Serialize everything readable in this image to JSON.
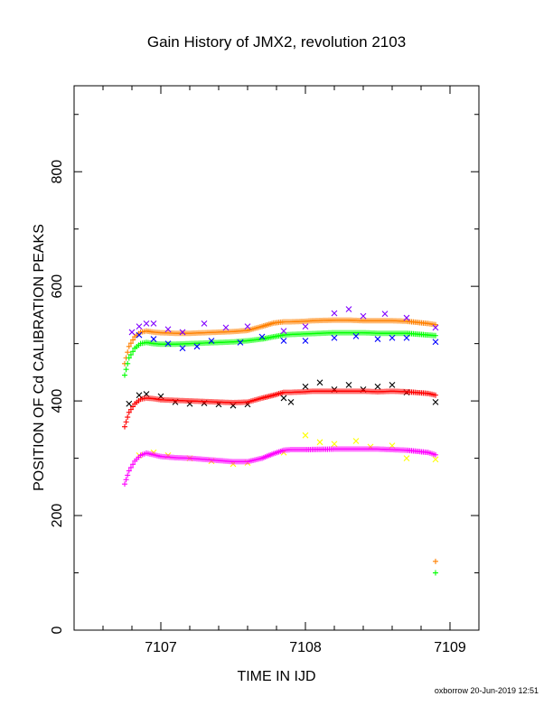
{
  "chart_data": {
    "type": "scatter",
    "title": "Gain History of JMX2, revolution 2103",
    "xlabel": "TIME IN IJD",
    "ylabel": "POSITION OF Cd CALIBRATION PEAKS",
    "xlim": [
      7106.4,
      7109.2
    ],
    "ylim": [
      0,
      950
    ],
    "x_ticks": [
      "7107",
      "7108",
      "7109"
    ],
    "y_ticks": [
      "0",
      "200",
      "400",
      "600",
      "800"
    ],
    "grid": false,
    "legend": "none",
    "credit": "oxborrow 20-Jun-2019 12:51",
    "series": [
      {
        "color": "#ff8000",
        "marker": "+",
        "points": [
          [
            6.75,
            465
          ],
          [
            6.78,
            495
          ],
          [
            6.82,
            512
          ],
          [
            6.86,
            520
          ],
          [
            6.9,
            522
          ],
          [
            6.95,
            520
          ],
          [
            7.0,
            519
          ],
          [
            7.1,
            518
          ],
          [
            7.2,
            518
          ],
          [
            7.3,
            519
          ],
          [
            7.4,
            520
          ],
          [
            7.5,
            521
          ],
          [
            7.6,
            523
          ],
          [
            7.7,
            530
          ],
          [
            7.78,
            536
          ],
          [
            7.85,
            538
          ],
          [
            7.9,
            538
          ],
          [
            8.0,
            539
          ],
          [
            8.05,
            540
          ],
          [
            8.2,
            541
          ],
          [
            8.3,
            541
          ],
          [
            8.4,
            540
          ],
          [
            8.5,
            540
          ],
          [
            8.6,
            540
          ],
          [
            8.7,
            539
          ],
          [
            8.85,
            535
          ],
          [
            8.9,
            533
          ],
          [
            8.9,
            120
          ]
        ]
      },
      {
        "color": "#00ff00",
        "marker": "+",
        "points": [
          [
            6.75,
            445
          ],
          [
            6.78,
            475
          ],
          [
            6.82,
            492
          ],
          [
            6.86,
            500
          ],
          [
            6.9,
            502
          ],
          [
            6.95,
            500
          ],
          [
            7.0,
            499
          ],
          [
            7.1,
            499
          ],
          [
            7.2,
            500
          ],
          [
            7.3,
            501
          ],
          [
            7.4,
            502
          ],
          [
            7.5,
            503
          ],
          [
            7.6,
            505
          ],
          [
            7.7,
            508
          ],
          [
            7.78,
            512
          ],
          [
            7.85,
            515
          ],
          [
            7.9,
            516
          ],
          [
            8.0,
            517
          ],
          [
            8.1,
            518
          ],
          [
            8.2,
            519
          ],
          [
            8.3,
            519
          ],
          [
            8.4,
            519
          ],
          [
            8.5,
            518
          ],
          [
            8.6,
            518
          ],
          [
            8.7,
            518
          ],
          [
            8.85,
            515
          ],
          [
            8.9,
            514
          ],
          [
            8.9,
            100
          ]
        ]
      },
      {
        "color": "#8000ff",
        "marker": "x",
        "points": [
          [
            6.8,
            520
          ],
          [
            6.85,
            530
          ],
          [
            6.9,
            535
          ],
          [
            6.95,
            535
          ],
          [
            7.05,
            525
          ],
          [
            7.15,
            520
          ],
          [
            7.3,
            535
          ],
          [
            7.45,
            528
          ],
          [
            7.6,
            530
          ],
          [
            7.85,
            522
          ],
          [
            8.0,
            530
          ],
          [
            8.2,
            553
          ],
          [
            8.3,
            560
          ],
          [
            8.4,
            548
          ],
          [
            8.55,
            552
          ],
          [
            8.7,
            545
          ],
          [
            8.9,
            528
          ]
        ]
      },
      {
        "color": "#0000ff",
        "marker": "x",
        "points": [
          [
            6.85,
            515
          ],
          [
            6.95,
            508
          ],
          [
            7.05,
            500
          ],
          [
            7.15,
            492
          ],
          [
            7.25,
            495
          ],
          [
            7.35,
            505
          ],
          [
            7.55,
            502
          ],
          [
            7.7,
            512
          ],
          [
            7.85,
            505
          ],
          [
            8.0,
            505
          ],
          [
            8.2,
            510
          ],
          [
            8.35,
            513
          ],
          [
            8.5,
            508
          ],
          [
            8.6,
            510
          ],
          [
            8.7,
            510
          ],
          [
            8.9,
            503
          ]
        ]
      },
      {
        "color": "#000000",
        "marker": "x",
        "points": [
          [
            6.78,
            395
          ],
          [
            6.85,
            410
          ],
          [
            6.9,
            412
          ],
          [
            7.0,
            408
          ],
          [
            7.1,
            398
          ],
          [
            7.2,
            395
          ],
          [
            7.3,
            396
          ],
          [
            7.4,
            394
          ],
          [
            7.5,
            392
          ],
          [
            7.6,
            394
          ],
          [
            7.85,
            405
          ],
          [
            7.9,
            398
          ],
          [
            8.0,
            425
          ],
          [
            8.1,
            432
          ],
          [
            8.2,
            420
          ],
          [
            8.3,
            428
          ],
          [
            8.4,
            420
          ],
          [
            8.5,
            425
          ],
          [
            8.6,
            428
          ],
          [
            8.7,
            415
          ],
          [
            8.9,
            398
          ]
        ]
      },
      {
        "color": "#ff0000",
        "marker": "+",
        "points": [
          [
            6.75,
            355
          ],
          [
            6.78,
            380
          ],
          [
            6.82,
            395
          ],
          [
            6.86,
            403
          ],
          [
            6.9,
            405
          ],
          [
            6.95,
            404
          ],
          [
            7.0,
            402
          ],
          [
            7.1,
            401
          ],
          [
            7.2,
            400
          ],
          [
            7.3,
            399
          ],
          [
            7.4,
            398
          ],
          [
            7.5,
            397
          ],
          [
            7.6,
            398
          ],
          [
            7.7,
            405
          ],
          [
            7.78,
            410
          ],
          [
            7.85,
            415
          ],
          [
            7.9,
            415
          ],
          [
            8.0,
            416
          ],
          [
            8.05,
            417
          ],
          [
            8.2,
            417
          ],
          [
            8.3,
            417
          ],
          [
            8.4,
            417
          ],
          [
            8.5,
            416
          ],
          [
            8.6,
            417
          ],
          [
            8.7,
            416
          ],
          [
            8.85,
            413
          ],
          [
            8.9,
            410
          ]
        ]
      },
      {
        "color": "#ffff00",
        "marker": "x",
        "points": [
          [
            6.85,
            305
          ],
          [
            6.95,
            310
          ],
          [
            7.05,
            305
          ],
          [
            7.2,
            300
          ],
          [
            7.35,
            295
          ],
          [
            7.5,
            290
          ],
          [
            7.6,
            292
          ],
          [
            7.85,
            310
          ],
          [
            8.0,
            340
          ],
          [
            8.1,
            328
          ],
          [
            8.2,
            325
          ],
          [
            8.35,
            330
          ],
          [
            8.45,
            320
          ],
          [
            8.6,
            322
          ],
          [
            8.7,
            300
          ],
          [
            8.9,
            298
          ]
        ]
      },
      {
        "color": "#ff00ff",
        "marker": "+",
        "points": [
          [
            6.75,
            255
          ],
          [
            6.78,
            278
          ],
          [
            6.82,
            295
          ],
          [
            6.86,
            305
          ],
          [
            6.9,
            309
          ],
          [
            6.95,
            306
          ],
          [
            7.0,
            303
          ],
          [
            7.1,
            301
          ],
          [
            7.2,
            300
          ],
          [
            7.3,
            298
          ],
          [
            7.4,
            296
          ],
          [
            7.5,
            294
          ],
          [
            7.6,
            294
          ],
          [
            7.7,
            300
          ],
          [
            7.78,
            308
          ],
          [
            7.85,
            314
          ],
          [
            7.9,
            315
          ],
          [
            8.0,
            315
          ],
          [
            8.2,
            316
          ],
          [
            8.3,
            316
          ],
          [
            8.4,
            316
          ],
          [
            8.5,
            316
          ],
          [
            8.6,
            315
          ],
          [
            8.7,
            314
          ],
          [
            8.85,
            310
          ],
          [
            8.9,
            306
          ]
        ]
      }
    ]
  }
}
